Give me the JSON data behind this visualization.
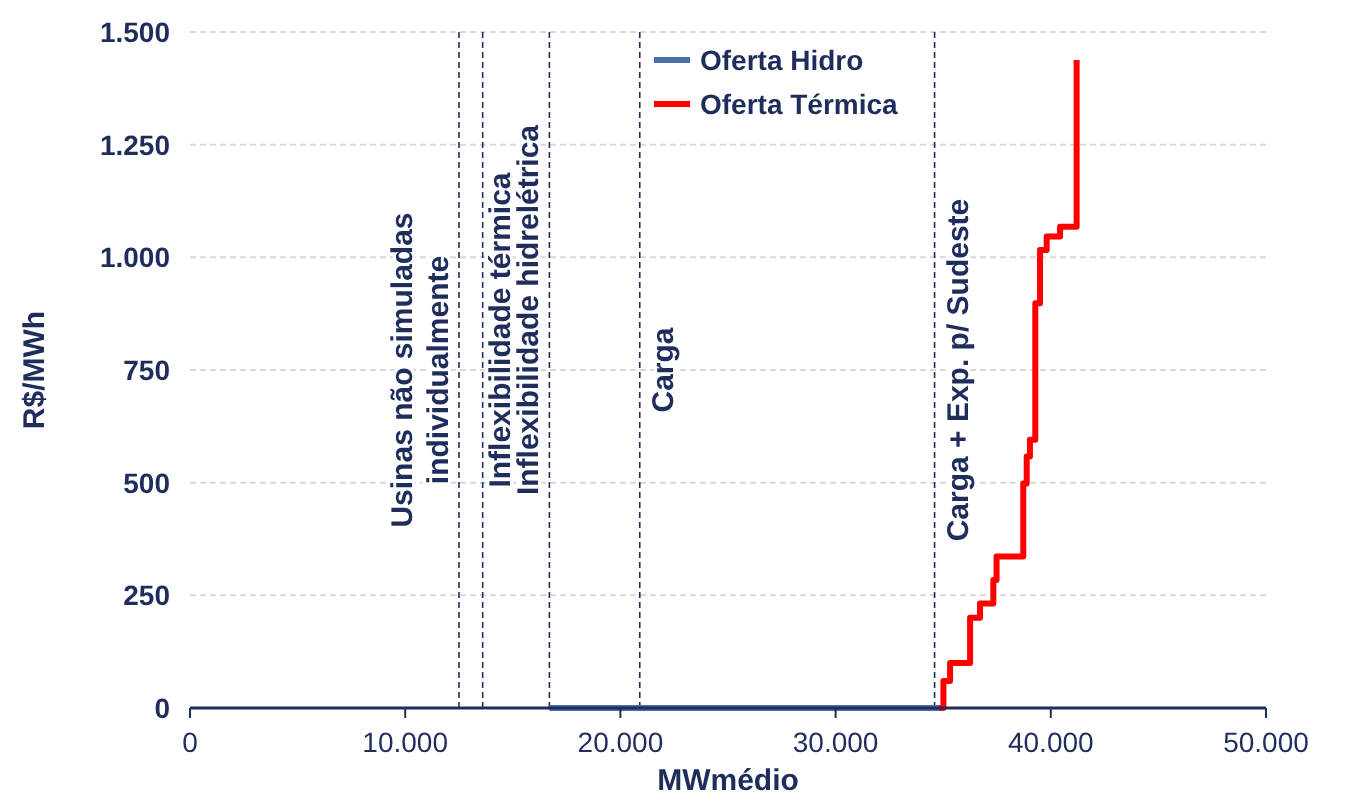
{
  "chart_data": {
    "type": "line",
    "xlabel": "MWmédio",
    "ylabel": "R$/MWh",
    "xlim": [
      0,
      50000
    ],
    "xticks": [
      {
        "value": 0,
        "label": "0"
      },
      {
        "value": 10000,
        "label": "10.000"
      },
      {
        "value": 20000,
        "label": "20.000"
      },
      {
        "value": 30000,
        "label": "30.000"
      },
      {
        "value": 40000,
        "label": "40.000"
      },
      {
        "value": 50000,
        "label": "50.000"
      }
    ],
    "ylim": [
      0,
      1500
    ],
    "yticks": [
      {
        "value": 0,
        "label": "0"
      },
      {
        "value": 250,
        "label": "250"
      },
      {
        "value": 500,
        "label": "500"
      },
      {
        "value": 750,
        "label": "750"
      },
      {
        "value": 1000,
        "label": "1.000"
      },
      {
        "value": 1250,
        "label": "1.250"
      },
      {
        "value": 1500,
        "label": "1.500"
      }
    ],
    "grid": "y",
    "legend": "top",
    "series": [
      {
        "name": "Oferta Hidro",
        "type": "line",
        "color": "#4a6ea8",
        "x": [
          16700,
          34800
        ],
        "values": [
          0,
          0
        ]
      },
      {
        "name": "Oferta Térmica",
        "type": "step",
        "color": "#ff0000",
        "x": [
          34800,
          35010,
          35320,
          36250,
          36710,
          37330,
          37480,
          38720,
          38880,
          39030,
          39280,
          39500,
          39810,
          40430,
          41200
        ],
        "values": [
          0,
          60,
          100,
          200,
          232,
          284,
          336,
          498,
          558,
          595,
          898,
          1016,
          1046,
          1068,
          1438
        ]
      }
    ],
    "ref_lines": [
      {
        "axis": "x",
        "value": 12500,
        "label": "Usinas não simuladas individualmente",
        "color": "#1f2d5c",
        "line_style": "dashed"
      },
      {
        "axis": "x",
        "value": 13600,
        "label": "Inflexibilidade térmica",
        "color": "#1f2d5c",
        "line_style": "dashed"
      },
      {
        "axis": "x",
        "value": 16700,
        "label": "Inflexibilidade hidrelétrica",
        "color": "#1f2d5c",
        "line_style": "dashed"
      },
      {
        "axis": "x",
        "value": 20900,
        "label": "Carga",
        "color": "#1f2d5c",
        "line_style": "dashed"
      },
      {
        "axis": "x",
        "value": 34600,
        "label": "Carga + Exp. p/ Sudeste",
        "color": "#1f2d5c",
        "line_style": "dashed"
      }
    ]
  }
}
